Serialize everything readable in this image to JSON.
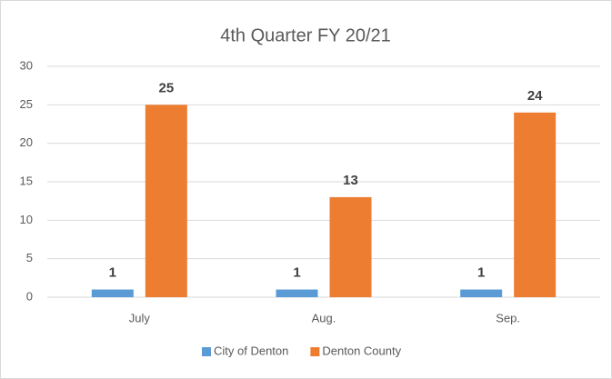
{
  "chart_data": {
    "type": "bar",
    "title": "4th Quarter FY 20/21",
    "categories": [
      "July",
      "Aug.",
      "Sep."
    ],
    "series": [
      {
        "name": "City of Denton",
        "color": "#5b9bd5",
        "values": [
          1,
          1,
          1
        ]
      },
      {
        "name": "Denton County",
        "color": "#ed7d31",
        "values": [
          25,
          13,
          24
        ]
      }
    ],
    "ylim": [
      0,
      30
    ],
    "yticks": [
      0,
      5,
      10,
      15,
      20,
      25,
      30
    ],
    "grid": true,
    "legend": "bottom"
  }
}
